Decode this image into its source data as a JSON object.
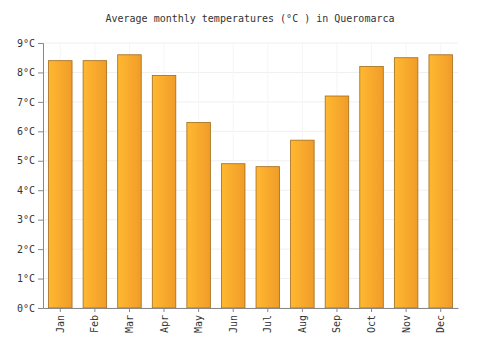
{
  "chart_data": {
    "type": "bar",
    "title": "Average monthly temperatures (°C ) in Queromarca",
    "categories": [
      "Jan",
      "Feb",
      "Mar",
      "Apr",
      "May",
      "Jun",
      "Jul",
      "Aug",
      "Sep",
      "Oct",
      "Nov",
      "Dec"
    ],
    "values": [
      8.4,
      8.4,
      8.6,
      7.9,
      6.3,
      4.9,
      4.8,
      5.7,
      7.2,
      8.2,
      8.5,
      8.6
    ],
    "color": "#f9a22a",
    "ylim": [
      0,
      9
    ],
    "yticks": [
      {
        "value": 0,
        "label": "0°C"
      },
      {
        "value": 1,
        "label": "1°C"
      },
      {
        "value": 2,
        "label": "2°C"
      },
      {
        "value": 3,
        "label": "3°C"
      },
      {
        "value": 4,
        "label": "4°C"
      },
      {
        "value": 5,
        "label": "5°C"
      },
      {
        "value": 6,
        "label": "6°C"
      },
      {
        "value": 7,
        "label": "7°C"
      },
      {
        "value": 8,
        "label": "8°C"
      },
      {
        "value": 9,
        "label": "9°C"
      }
    ],
    "grid": true
  }
}
